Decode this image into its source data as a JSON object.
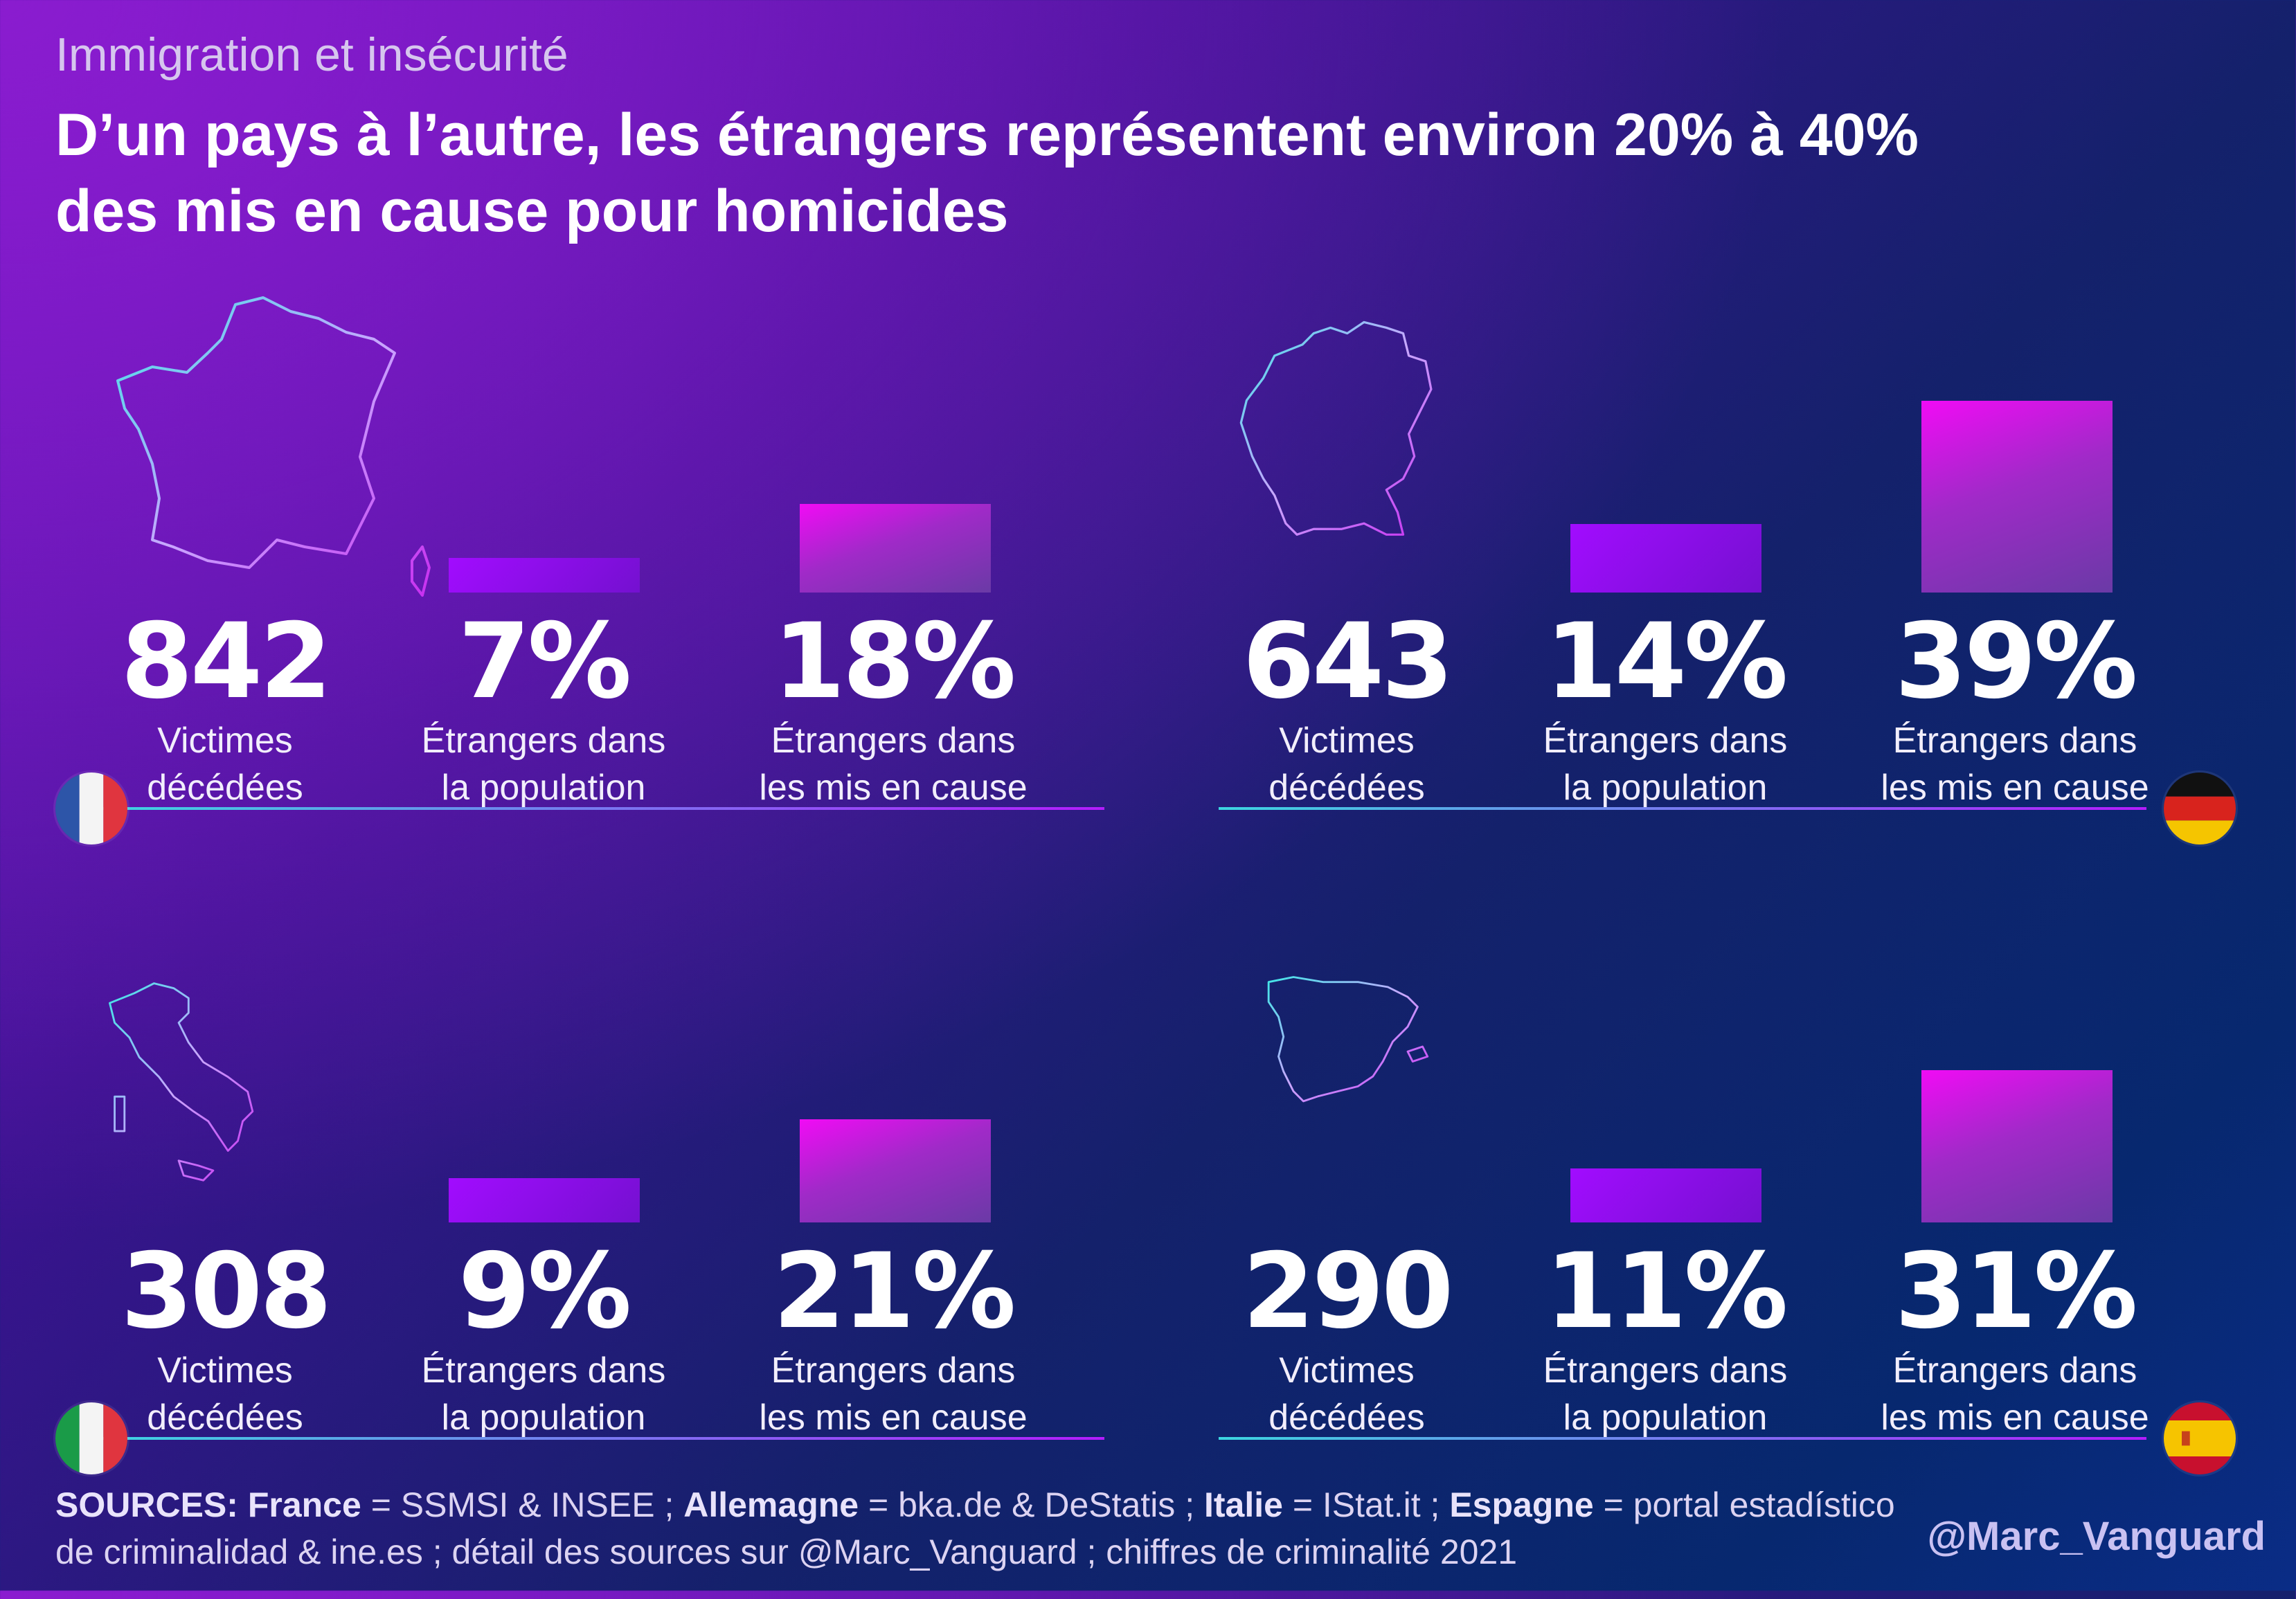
{
  "header": {
    "supertitle": "Immigration et insécurité",
    "title_line1": "D’un pays à l’autre, les étrangers représentent environ 20% à 40%",
    "title_line2": "des mis en cause pour homicides"
  },
  "labels": {
    "victims_line1": "Victimes",
    "victims_line2": "décédées",
    "pop_line1": "Étrangers dans",
    "pop_line2": "la population",
    "mis_line1": "Étrangers dans",
    "mis_line2": "les mis en cause"
  },
  "chart_data": [
    {
      "type": "bar",
      "country": "France",
      "categories": [
        "Étrangers dans la population",
        "Étrangers dans les mis en cause"
      ],
      "victims": "842",
      "values": [
        7,
        18
      ],
      "value_labels": [
        "7%",
        "18%"
      ],
      "flag": "france-flag"
    },
    {
      "type": "bar",
      "country": "Allemagne",
      "categories": [
        "Étrangers dans la population",
        "Étrangers dans les mis en cause"
      ],
      "victims": "643",
      "values": [
        14,
        39
      ],
      "value_labels": [
        "14%",
        "39%"
      ],
      "flag": "germany-flag"
    },
    {
      "type": "bar",
      "country": "Italie",
      "categories": [
        "Étrangers dans la population",
        "Étrangers dans les mis en cause"
      ],
      "victims": "308",
      "values": [
        9,
        21
      ],
      "value_labels": [
        "9%",
        "21%"
      ],
      "flag": "italy-flag"
    },
    {
      "type": "bar",
      "country": "Espagne",
      "categories": [
        "Étrangers dans la population",
        "Étrangers dans les mis en cause"
      ],
      "victims": "290",
      "values": [
        11,
        31
      ],
      "value_labels": [
        "11%",
        "31%"
      ],
      "flag": "spain-flag"
    }
  ],
  "footer": {
    "sources_label": "SOURCES:",
    "france_label": "France",
    "france_src": " = SSMSI & INSEE ; ",
    "germany_label": "Allemagne",
    "germany_src": " = bka.de & DeStatis ; ",
    "italy_label": "Italie",
    "italy_src": " = IStat.it ; ",
    "spain_label": "Espagne",
    "spain_src": " = portal estadístico de criminalidad & ine.es ; détail des sources sur @Marc_Vanguard ; chiffres de criminalité 2021",
    "handle": "@Marc_Vanguard"
  },
  "colors": {
    "bar_population": "#8a0ee8",
    "bar_mis": "#e40cf0",
    "line_start": "#3cd6e0",
    "line_end": "#b41cff"
  }
}
